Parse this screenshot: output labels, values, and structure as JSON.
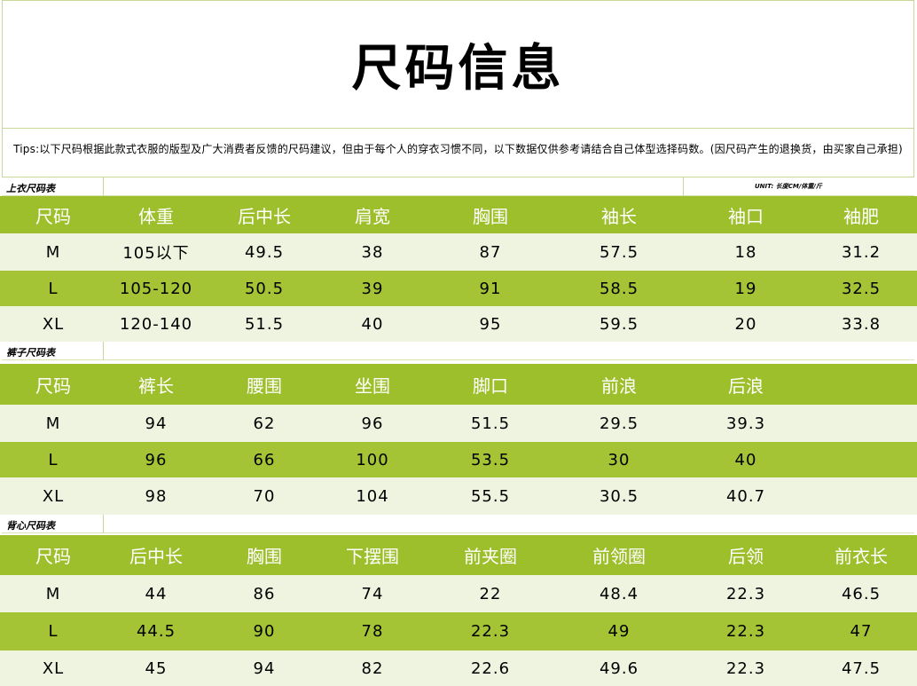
{
  "title": "尺码信息",
  "tips": "Tips:以下尺码根据此款式衣服的版型及广大消费者反馈的尺码建议，但由于每个人的穿衣习惯不同，以下数据仅供参考请结合自己体型选择码数。(因尺码产生的退换货，由买家自己承担)",
  "unit_label": "UNIT: 长度CM/体重/斤",
  "colors": {
    "header_green": "#9ebf2c",
    "dark_row": "#a4c435",
    "light_row": "#eef4df"
  },
  "tables": [
    {
      "label": "上衣尺码表",
      "headers": [
        "尺码",
        "体重",
        "后中长",
        "肩宽",
        "胸围",
        "袖长",
        "袖口",
        "袖肥"
      ],
      "rows": [
        [
          "M",
          "105以下",
          "49.5",
          "38",
          "87",
          "57.5",
          "18",
          "31.2"
        ],
        [
          "L",
          "105-120",
          "50.5",
          "39",
          "91",
          "58.5",
          "19",
          "32.5"
        ],
        [
          "XL",
          "120-140",
          "51.5",
          "40",
          "95",
          "59.5",
          "20",
          "33.8"
        ]
      ]
    },
    {
      "label": "裤子尺码表",
      "headers": [
        "尺码",
        "裤长",
        "腰围",
        "坐围",
        "脚口",
        "前浪",
        "后浪",
        ""
      ],
      "rows": [
        [
          "M",
          "94",
          "62",
          "96",
          "51.5",
          "29.5",
          "39.3",
          ""
        ],
        [
          "L",
          "96",
          "66",
          "100",
          "53.5",
          "30",
          "40",
          ""
        ],
        [
          "XL",
          "98",
          "70",
          "104",
          "55.5",
          "30.5",
          "40.7",
          ""
        ]
      ]
    },
    {
      "label": "背心尺码表",
      "headers": [
        "尺码",
        "后中长",
        "胸围",
        "下摆围",
        "前夹圈",
        "前领圈",
        "后领",
        "前衣长"
      ],
      "rows": [
        [
          "M",
          "44",
          "86",
          "74",
          "22",
          "48.4",
          "22.3",
          "46.5"
        ],
        [
          "L",
          "44.5",
          "90",
          "78",
          "22.3",
          "49",
          "22.3",
          "47"
        ],
        [
          "XL",
          "45",
          "94",
          "82",
          "22.6",
          "49.6",
          "22.3",
          "47.5"
        ]
      ]
    }
  ]
}
